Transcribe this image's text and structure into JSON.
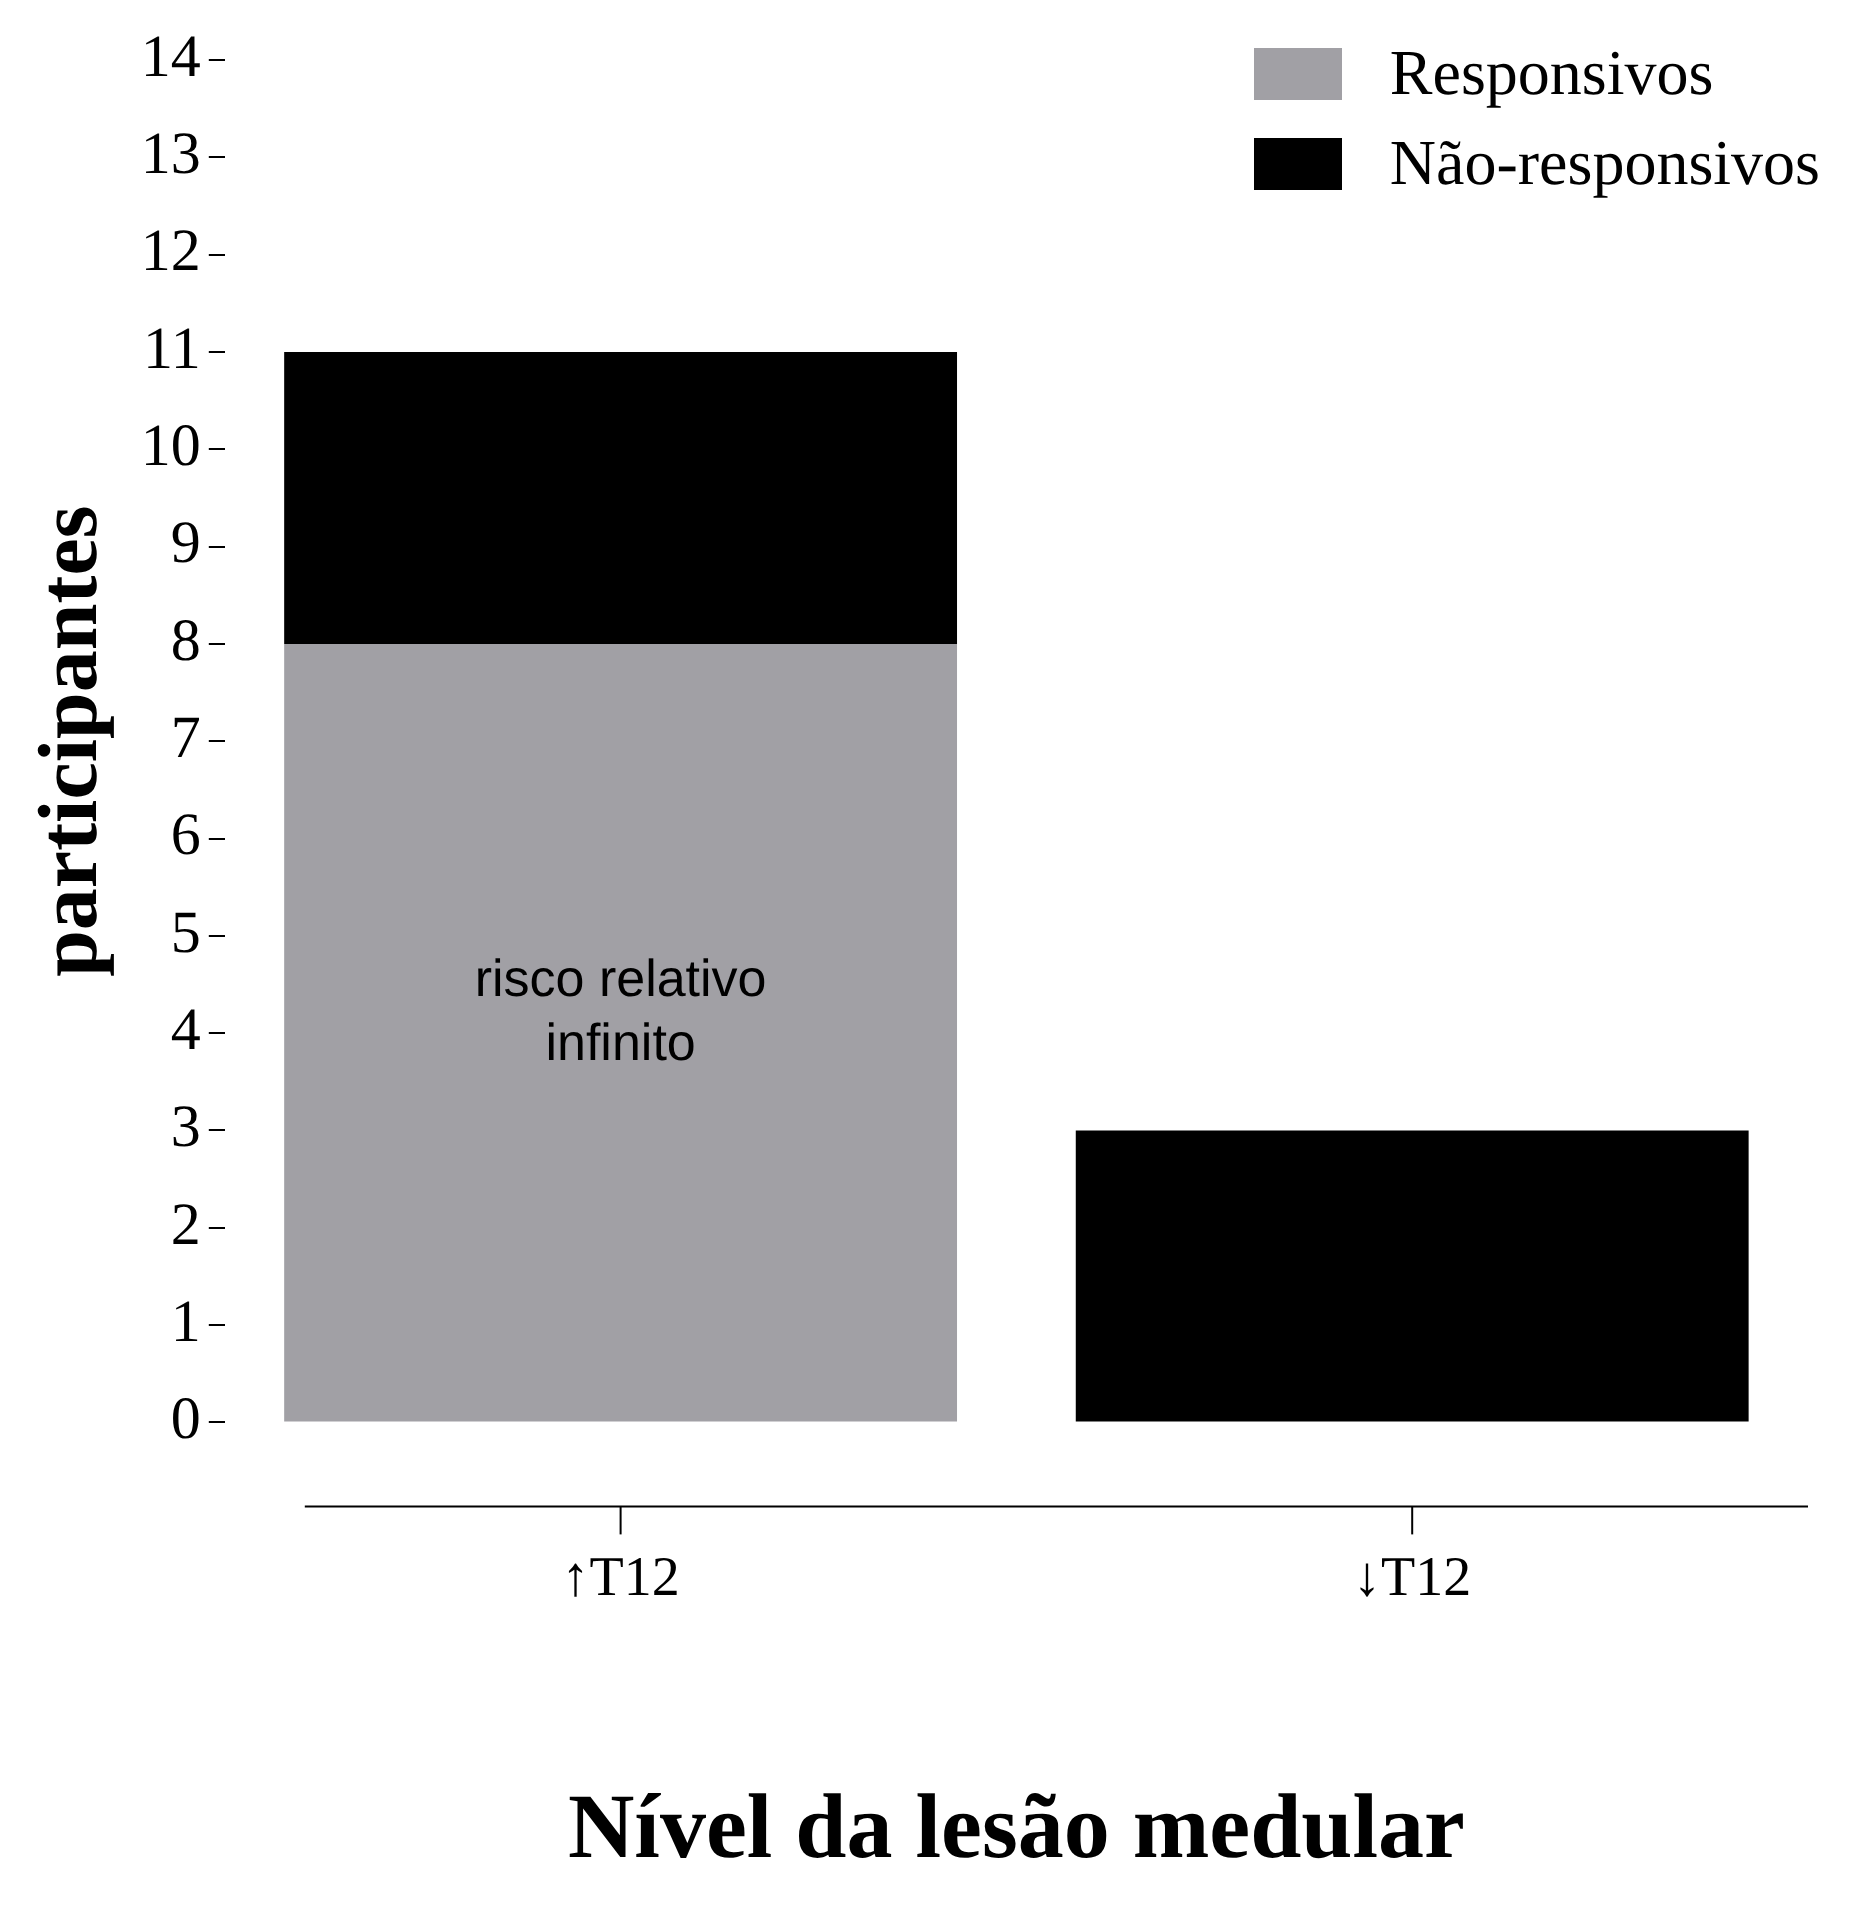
{
  "chart_data": {
    "type": "bar",
    "stacked": true,
    "xlabel": "Nível da lesão medular",
    "ylabel": "participantes",
    "categories": [
      "↑T12",
      "↓T12"
    ],
    "series": [
      {
        "name": "Responsivos",
        "color": "#a1a0a5",
        "values": [
          8,
          0
        ]
      },
      {
        "name": "Não-responsivos",
        "color": "#000000",
        "values": [
          3,
          3
        ]
      }
    ],
    "ylim": [
      0,
      14
    ],
    "yticks": [
      0,
      1,
      2,
      3,
      4,
      5,
      6,
      7,
      8,
      9,
      10,
      11,
      12,
      13,
      14
    ],
    "grid": false,
    "legend": "top right",
    "annotations": [
      "risco relativo infinito"
    ]
  }
}
